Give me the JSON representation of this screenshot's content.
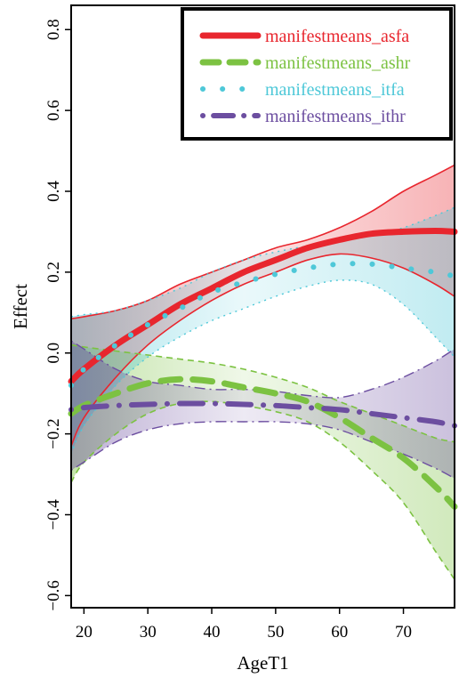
{
  "chart_data": {
    "type": "line",
    "title": "",
    "xlabel": "AgeT1",
    "ylabel": "Effect",
    "xlim": [
      18,
      78
    ],
    "ylim": [
      -0.63,
      0.86
    ],
    "xticks": [
      20,
      30,
      40,
      50,
      60,
      70
    ],
    "yticks": [
      -0.6,
      -0.4,
      -0.2,
      0.0,
      0.2,
      0.4,
      0.6,
      0.8
    ],
    "x_tick_labels": [
      "20",
      "30",
      "40",
      "50",
      "60",
      "70"
    ],
    "y_tick_labels": [
      "−0.6",
      "−0.4",
      "−0.2",
      "0.0",
      "0.2",
      "0.4",
      "0.6",
      "0.8"
    ],
    "grid": false,
    "legend_position": "top-right",
    "x": [
      18,
      20,
      25,
      30,
      35,
      40,
      45,
      50,
      55,
      60,
      65,
      70,
      75,
      78
    ],
    "series": [
      {
        "name": "manifestmeans_asfa",
        "color": "#e8262e",
        "line_style": "solid",
        "values": [
          -0.07,
          -0.04,
          0.02,
          0.07,
          0.12,
          0.16,
          0.2,
          0.23,
          0.26,
          0.28,
          0.295,
          0.3,
          0.302,
          0.3
        ],
        "lower": [
          -0.23,
          -0.16,
          -0.06,
          0.02,
          0.08,
          0.13,
          0.17,
          0.2,
          0.23,
          0.245,
          0.235,
          0.21,
          0.17,
          0.14
        ],
        "upper": [
          0.085,
          0.09,
          0.105,
          0.13,
          0.17,
          0.2,
          0.23,
          0.26,
          0.28,
          0.31,
          0.35,
          0.4,
          0.44,
          0.465
        ]
      },
      {
        "name": "manifestmeans_ashr",
        "color": "#7cc242",
        "line_style": "dashed",
        "values": [
          -0.15,
          -0.13,
          -0.1,
          -0.075,
          -0.065,
          -0.07,
          -0.085,
          -0.1,
          -0.12,
          -0.16,
          -0.21,
          -0.26,
          -0.33,
          -0.38
        ],
        "lower": [
          -0.32,
          -0.27,
          -0.2,
          -0.15,
          -0.125,
          -0.12,
          -0.13,
          -0.145,
          -0.17,
          -0.22,
          -0.29,
          -0.37,
          -0.49,
          -0.56
        ],
        "upper": [
          0.02,
          0.015,
          0.005,
          -0.005,
          -0.015,
          -0.025,
          -0.04,
          -0.06,
          -0.085,
          -0.12,
          -0.15,
          -0.18,
          -0.21,
          -0.22
        ]
      },
      {
        "name": "manifestmeans_itfa",
        "color": "#4ec8d8",
        "line_style": "dotted",
        "values": [
          -0.08,
          -0.04,
          0.02,
          0.07,
          0.11,
          0.15,
          0.175,
          0.195,
          0.21,
          0.22,
          0.22,
          0.21,
          0.2,
          0.19
        ],
        "lower": [
          -0.25,
          -0.18,
          -0.08,
          -0.01,
          0.04,
          0.08,
          0.11,
          0.14,
          0.165,
          0.18,
          0.17,
          0.12,
          0.04,
          -0.01
        ],
        "upper": [
          0.09,
          0.095,
          0.105,
          0.13,
          0.16,
          0.2,
          0.23,
          0.25,
          0.265,
          0.28,
          0.29,
          0.31,
          0.34,
          0.36
        ]
      },
      {
        "name": "manifestmeans_ithr",
        "color": "#6c4ea0",
        "line_style": "dotdash",
        "values": [
          -0.14,
          -0.135,
          -0.13,
          -0.127,
          -0.125,
          -0.125,
          -0.127,
          -0.13,
          -0.135,
          -0.14,
          -0.15,
          -0.16,
          -0.17,
          -0.18
        ],
        "lower": [
          -0.29,
          -0.27,
          -0.22,
          -0.19,
          -0.175,
          -0.17,
          -0.17,
          -0.17,
          -0.175,
          -0.19,
          -0.22,
          -0.25,
          -0.285,
          -0.31
        ],
        "upper": [
          0.03,
          0.01,
          -0.04,
          -0.07,
          -0.08,
          -0.09,
          -0.09,
          -0.095,
          -0.105,
          -0.11,
          -0.09,
          -0.06,
          -0.02,
          0.01
        ]
      }
    ]
  }
}
